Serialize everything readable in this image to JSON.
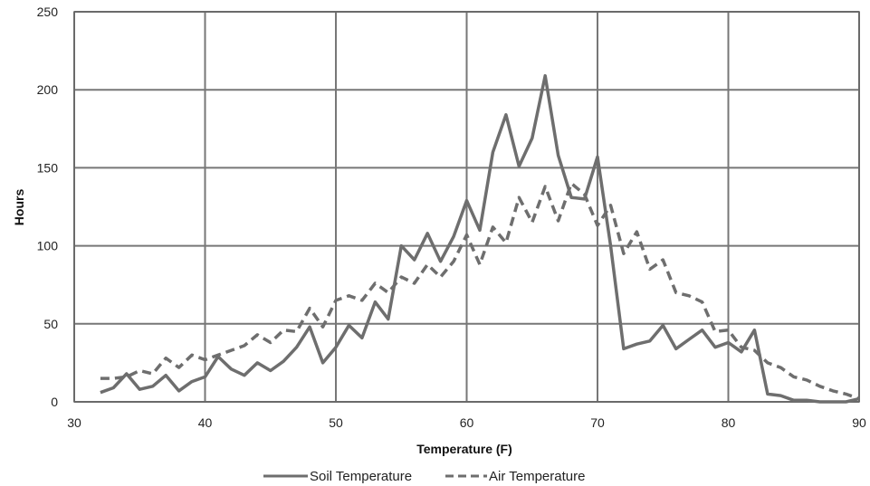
{
  "chart_data": {
    "type": "line",
    "title": "",
    "xlabel": "Temperature (F)",
    "ylabel": "Hours",
    "xlim": [
      30,
      90
    ],
    "ylim": [
      0,
      250
    ],
    "x_ticks": [
      30,
      40,
      50,
      60,
      70,
      80,
      90
    ],
    "y_ticks": [
      0,
      50,
      100,
      150,
      200,
      250
    ],
    "grid": true,
    "legend_position": "bottom",
    "colors": {
      "series_line": "#6e6e6e",
      "grid": "#777777",
      "axis": "#666666"
    },
    "series": [
      {
        "name": "Soil Temperature",
        "style": "solid",
        "x": [
          32,
          33,
          34,
          35,
          36,
          37,
          38,
          39,
          40,
          41,
          42,
          43,
          44,
          45,
          46,
          47,
          48,
          49,
          50,
          51,
          52,
          53,
          54,
          55,
          56,
          57,
          58,
          59,
          60,
          61,
          62,
          63,
          64,
          65,
          66,
          67,
          68,
          69,
          70,
          71,
          72,
          73,
          74,
          75,
          76,
          77,
          78,
          79,
          80,
          81,
          82,
          83,
          84,
          85,
          86,
          87,
          88,
          89,
          90
        ],
        "values": [
          6,
          9,
          18,
          8,
          10,
          17,
          7,
          13,
          16,
          29,
          21,
          17,
          25,
          20,
          26,
          35,
          48,
          25,
          35,
          49,
          41,
          64,
          53,
          100,
          91,
          108,
          90,
          106,
          129,
          110,
          160,
          184,
          151,
          169,
          209,
          158,
          131,
          130,
          157,
          100,
          34,
          37,
          39,
          49,
          34,
          40,
          46,
          35,
          38,
          32,
          46,
          5,
          4,
          1,
          1,
          0,
          0,
          0,
          2
        ]
      },
      {
        "name": "Air Temperature",
        "style": "dashed",
        "x": [
          32,
          33,
          34,
          35,
          36,
          37,
          38,
          39,
          40,
          41,
          42,
          43,
          44,
          45,
          46,
          47,
          48,
          49,
          50,
          51,
          52,
          53,
          54,
          55,
          56,
          57,
          58,
          59,
          60,
          61,
          62,
          63,
          64,
          65,
          66,
          67,
          68,
          69,
          70,
          71,
          72,
          73,
          74,
          75,
          76,
          77,
          78,
          79,
          80,
          81,
          82,
          83,
          84,
          85,
          86,
          87,
          88,
          89,
          90
        ],
        "values": [
          15,
          15,
          16,
          20,
          18,
          28,
          22,
          30,
          27,
          30,
          33,
          36,
          43,
          38,
          46,
          45,
          60,
          48,
          65,
          68,
          65,
          76,
          70,
          80,
          76,
          88,
          80,
          90,
          107,
          88,
          112,
          102,
          131,
          115,
          138,
          116,
          140,
          133,
          113,
          126,
          95,
          109,
          85,
          91,
          70,
          68,
          64,
          45,
          46,
          35,
          33,
          25,
          22,
          16,
          14,
          10,
          7,
          5,
          2
        ]
      }
    ]
  }
}
